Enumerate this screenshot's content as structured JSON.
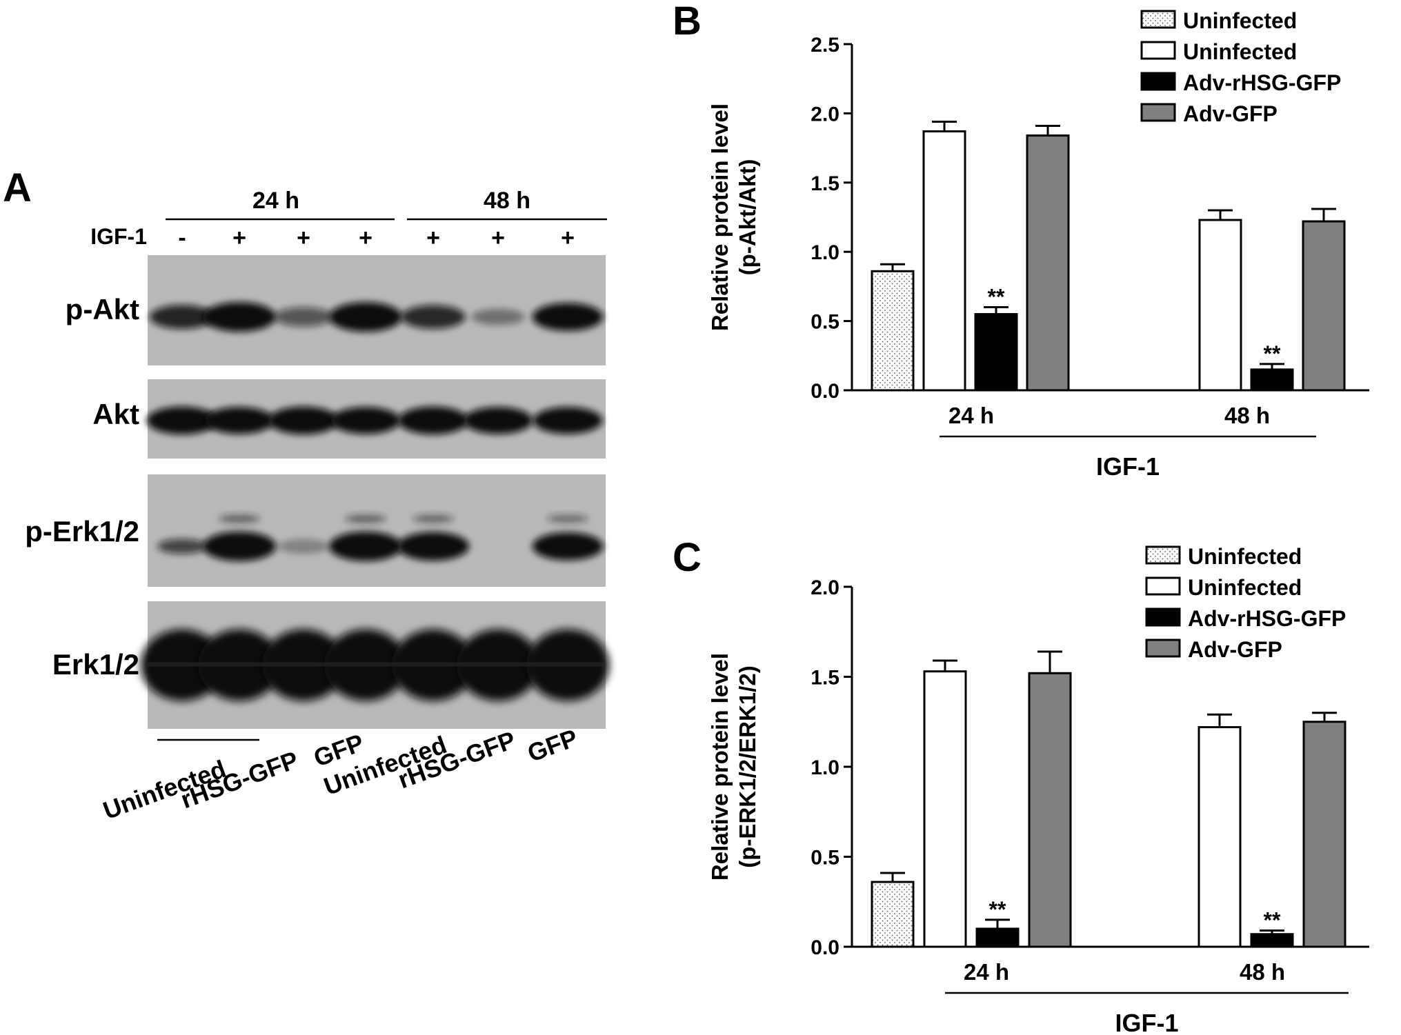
{
  "colors": {
    "ink": "#000000",
    "paper": "#ffffff",
    "gray_bar": "#808080",
    "blot_bg": "#b9b9b9",
    "band": "#0c0c0c"
  },
  "panel_a": {
    "letter": "A",
    "time_labels": [
      "24 h",
      "48 h"
    ],
    "treatment_label": "IGF-1",
    "treatment_signs": [
      "-",
      "+",
      "+",
      "+",
      "+",
      "+",
      "+"
    ],
    "rows": [
      "p-Akt",
      "Akt",
      "p-Erk1/2",
      "Erk1/2"
    ],
    "lane_labels": [
      "Uninfected",
      "rHSG-GFP",
      "GFP",
      "Uninfected",
      "rHSG-GFP",
      "GFP"
    ],
    "band_intensity": {
      "p-Akt": [
        0.62,
        0.95,
        0.35,
        0.95,
        0.6,
        0.15,
        0.85
      ],
      "Akt": [
        0.85,
        0.8,
        0.85,
        0.8,
        0.85,
        0.8,
        0.8
      ],
      "p-Erk1/2": [
        0.45,
        0.95,
        0.05,
        0.95,
        0.9,
        0.0,
        0.85
      ],
      "Erk1/2": [
        1,
        1,
        1,
        1,
        1,
        1,
        1
      ]
    }
  },
  "chart_data": [
    {
      "type": "bar",
      "panel": "B",
      "ylabel_lines": [
        "Relative protein level",
        "(p-Akt/Akt)"
      ],
      "xlabel": "IGF-1",
      "ylim": [
        0,
        2.5
      ],
      "yticks": [
        "0.0",
        "0.5",
        "1.0",
        "1.5",
        "2.0",
        "2.5"
      ],
      "categories": [
        "24 h",
        "48 h"
      ],
      "legend_position": "top-right",
      "grid": false,
      "series": [
        {
          "name": "Uninfected",
          "style": "dotted",
          "values": [
            0.86,
            null
          ],
          "errors": [
            0.05,
            null
          ]
        },
        {
          "name": "Uninfected",
          "style": "white",
          "values": [
            1.87,
            1.23
          ],
          "errors": [
            0.07,
            0.07
          ]
        },
        {
          "name": "Adv-rHSG-GFP",
          "style": "black",
          "values": [
            0.55,
            0.15
          ],
          "errors": [
            0.05,
            0.04
          ]
        },
        {
          "name": "Adv-GFP",
          "style": "gray",
          "values": [
            1.84,
            1.22
          ],
          "errors": [
            0.07,
            0.09
          ]
        }
      ],
      "annotations": [
        {
          "text": "**",
          "category": "24 h",
          "series": "Adv-rHSG-GFP"
        },
        {
          "text": "**",
          "category": "48 h",
          "series": "Adv-rHSG-GFP"
        }
      ]
    },
    {
      "type": "bar",
      "panel": "C",
      "ylabel_lines": [
        "Relative protein level",
        "(p-ERK1/2/ERK1/2)"
      ],
      "xlabel": "IGF-1",
      "ylim": [
        0,
        2.0
      ],
      "yticks": [
        "0.0",
        "0.5",
        "1.0",
        "1.5",
        "2.0"
      ],
      "categories": [
        "24 h",
        "48 h"
      ],
      "legend_position": "top-right",
      "grid": false,
      "series": [
        {
          "name": "Uninfected",
          "style": "dotted",
          "values": [
            0.36,
            null
          ],
          "errors": [
            0.05,
            null
          ]
        },
        {
          "name": "Uninfected",
          "style": "white",
          "values": [
            1.53,
            1.22
          ],
          "errors": [
            0.06,
            0.07
          ]
        },
        {
          "name": "Adv-rHSG-GFP",
          "style": "black",
          "values": [
            0.1,
            0.07
          ],
          "errors": [
            0.05,
            0.02
          ]
        },
        {
          "name": "Adv-GFP",
          "style": "gray",
          "values": [
            1.52,
            1.25
          ],
          "errors": [
            0.12,
            0.05
          ]
        }
      ],
      "annotations": [
        {
          "text": "**",
          "category": "24 h",
          "series": "Adv-rHSG-GFP"
        },
        {
          "text": "**",
          "category": "48 h",
          "series": "Adv-rHSG-GFP"
        }
      ]
    }
  ]
}
